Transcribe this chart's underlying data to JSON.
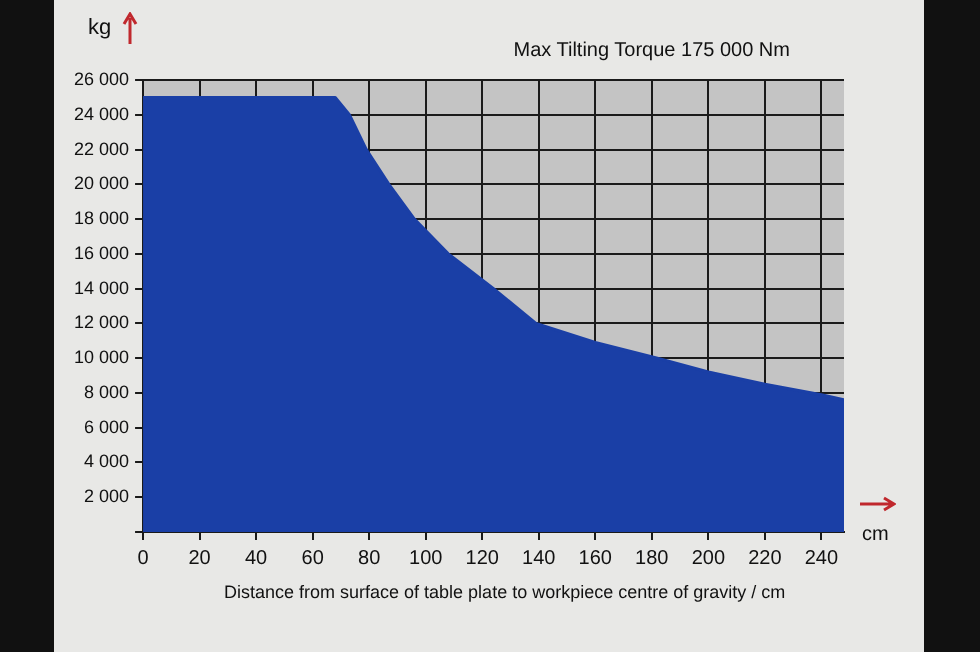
{
  "chart_data": {
    "type": "area",
    "title": "Max Tilting Torque 175 000 Nm",
    "xlabel": "Distance from surface of table plate to workpiece centre of gravity / cm",
    "ylabel": "kg",
    "annotations": [
      "cm"
    ],
    "x": [
      0,
      68,
      73,
      79,
      87,
      96,
      108,
      124,
      139,
      160,
      182,
      200,
      220,
      240,
      248
    ],
    "series": [
      {
        "color": "#1a3fa6",
        "values": [
          25000,
          25000,
          24000,
          22000,
          20000,
          18000,
          16000,
          14000,
          12000,
          10900,
          10000,
          9200,
          8500,
          7900,
          7600
        ]
      }
    ],
    "xlim": [
      0,
      248
    ],
    "xticks": [
      0,
      20,
      40,
      60,
      80,
      100,
      120,
      140,
      160,
      180,
      200,
      220,
      240
    ],
    "ylim": [
      0,
      26000
    ],
    "yticks": [
      {
        "value": 0,
        "label": null
      },
      {
        "value": 2000,
        "label": "2 000"
      },
      {
        "value": 4000,
        "label": "4 000"
      },
      {
        "value": 6000,
        "label": "6 000"
      },
      {
        "value": 8000,
        "label": "8 000"
      },
      {
        "value": 10000,
        "label": "10 000"
      },
      {
        "value": 12000,
        "label": "12 000"
      },
      {
        "value": 14000,
        "label": "14 000"
      },
      {
        "value": 16000,
        "label": "16 000"
      },
      {
        "value": 18000,
        "label": "18 000"
      },
      {
        "value": 20000,
        "label": "20 000"
      },
      {
        "value": 22000,
        "label": "22 000"
      },
      {
        "value": 24000,
        "label": "24 000"
      },
      {
        "value": 26000,
        "label": "26 000"
      }
    ],
    "grid": true,
    "legend": false
  }
}
